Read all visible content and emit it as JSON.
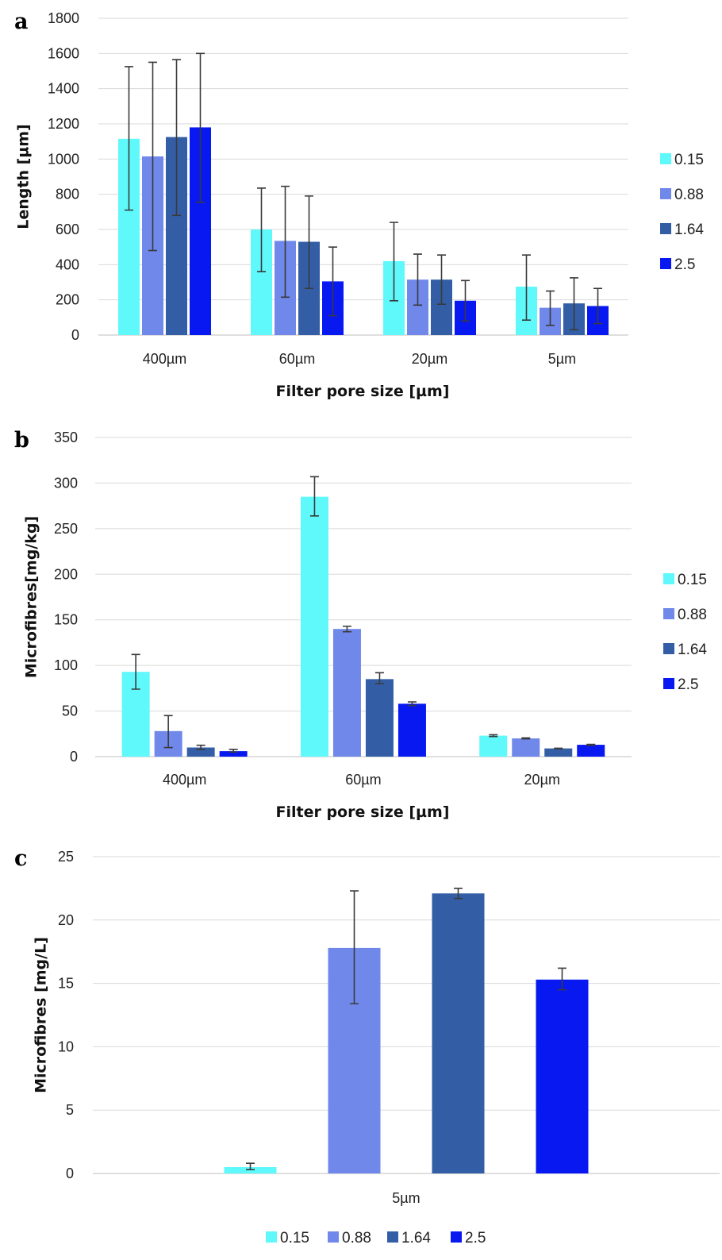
{
  "colors": {
    "s015": "#5ff9fb",
    "s088": "#6f88ea",
    "s164": "#335ea6",
    "s25": "#0719f0"
  },
  "chart_data": [
    {
      "panel": "a",
      "type": "bar",
      "categories": [
        "400µm",
        "60µm",
        "20µm",
        "5µm"
      ],
      "series": [
        {
          "name": "0.15",
          "values": [
            1115,
            600,
            420,
            275
          ],
          "err_low": [
            710,
            360,
            195,
            85
          ],
          "err_high": [
            1525,
            835,
            640,
            455
          ]
        },
        {
          "name": "0.88",
          "values": [
            1015,
            535,
            315,
            155
          ],
          "err_low": [
            480,
            215,
            170,
            55
          ],
          "err_high": [
            1550,
            845,
            460,
            250
          ]
        },
        {
          "name": "1.64",
          "values": [
            1125,
            530,
            315,
            180
          ],
          "err_low": [
            680,
            265,
            175,
            30
          ],
          "err_high": [
            1565,
            790,
            455,
            325
          ]
        },
        {
          "name": "2.5",
          "values": [
            1180,
            305,
            195,
            165
          ],
          "err_low": [
            755,
            110,
            80,
            65
          ],
          "err_high": [
            1600,
            500,
            310,
            265
          ]
        }
      ],
      "ylim": [
        0,
        1800
      ],
      "yticks": [
        "0",
        "200",
        "400",
        "600",
        "800",
        "1000",
        "1200",
        "1400",
        "1600",
        "1800"
      ],
      "ylabel": "Length [µm]",
      "xlabel": "Filter pore size [µm]",
      "legend": "right",
      "grid": true
    },
    {
      "panel": "b",
      "type": "bar",
      "categories": [
        "400µm",
        "60µm",
        "20µm"
      ],
      "series": [
        {
          "name": "0.15",
          "values": [
            93,
            285,
            23
          ],
          "err_low": [
            74,
            264,
            22
          ],
          "err_high": [
            112,
            307,
            24
          ]
        },
        {
          "name": "0.88",
          "values": [
            28,
            140,
            20
          ],
          "err_low": [
            10,
            137,
            19.5
          ],
          "err_high": [
            45,
            143,
            20.5
          ]
        },
        {
          "name": "1.64",
          "values": [
            10,
            85,
            9
          ],
          "err_low": [
            8,
            80,
            8.8
          ],
          "err_high": [
            12.5,
            92,
            9.2
          ]
        },
        {
          "name": "2.5",
          "values": [
            6,
            58,
            13
          ],
          "err_low": [
            5,
            56,
            12.5
          ],
          "err_high": [
            8,
            60,
            13.5
          ]
        }
      ],
      "ylim": [
        0,
        350
      ],
      "yticks": [
        "0",
        "50",
        "100",
        "150",
        "200",
        "250",
        "300",
        "350"
      ],
      "ylabel": "Microfibres[mg/kg]",
      "xlabel": "Filter pore size [µm]",
      "legend": "right",
      "grid": true
    },
    {
      "panel": "c",
      "type": "bar",
      "categories": [
        "5µm"
      ],
      "series": [
        {
          "name": "0.15",
          "values": [
            0.5
          ],
          "err_low": [
            0.3
          ],
          "err_high": [
            0.8
          ]
        },
        {
          "name": "0.88",
          "values": [
            17.8
          ],
          "err_low": [
            13.4
          ],
          "err_high": [
            22.3
          ]
        },
        {
          "name": "1.64",
          "values": [
            22.1
          ],
          "err_low": [
            21.7
          ],
          "err_high": [
            22.5
          ]
        },
        {
          "name": "2.5",
          "values": [
            15.3
          ],
          "err_low": [
            14.5
          ],
          "err_high": [
            16.2
          ]
        }
      ],
      "ylim": [
        0,
        25
      ],
      "yticks": [
        "0",
        "5",
        "10",
        "15",
        "20",
        "25"
      ],
      "ylabel": "Microfibres [mg/L]",
      "xlabel": "",
      "legend": "bottom",
      "grid": true
    }
  ]
}
